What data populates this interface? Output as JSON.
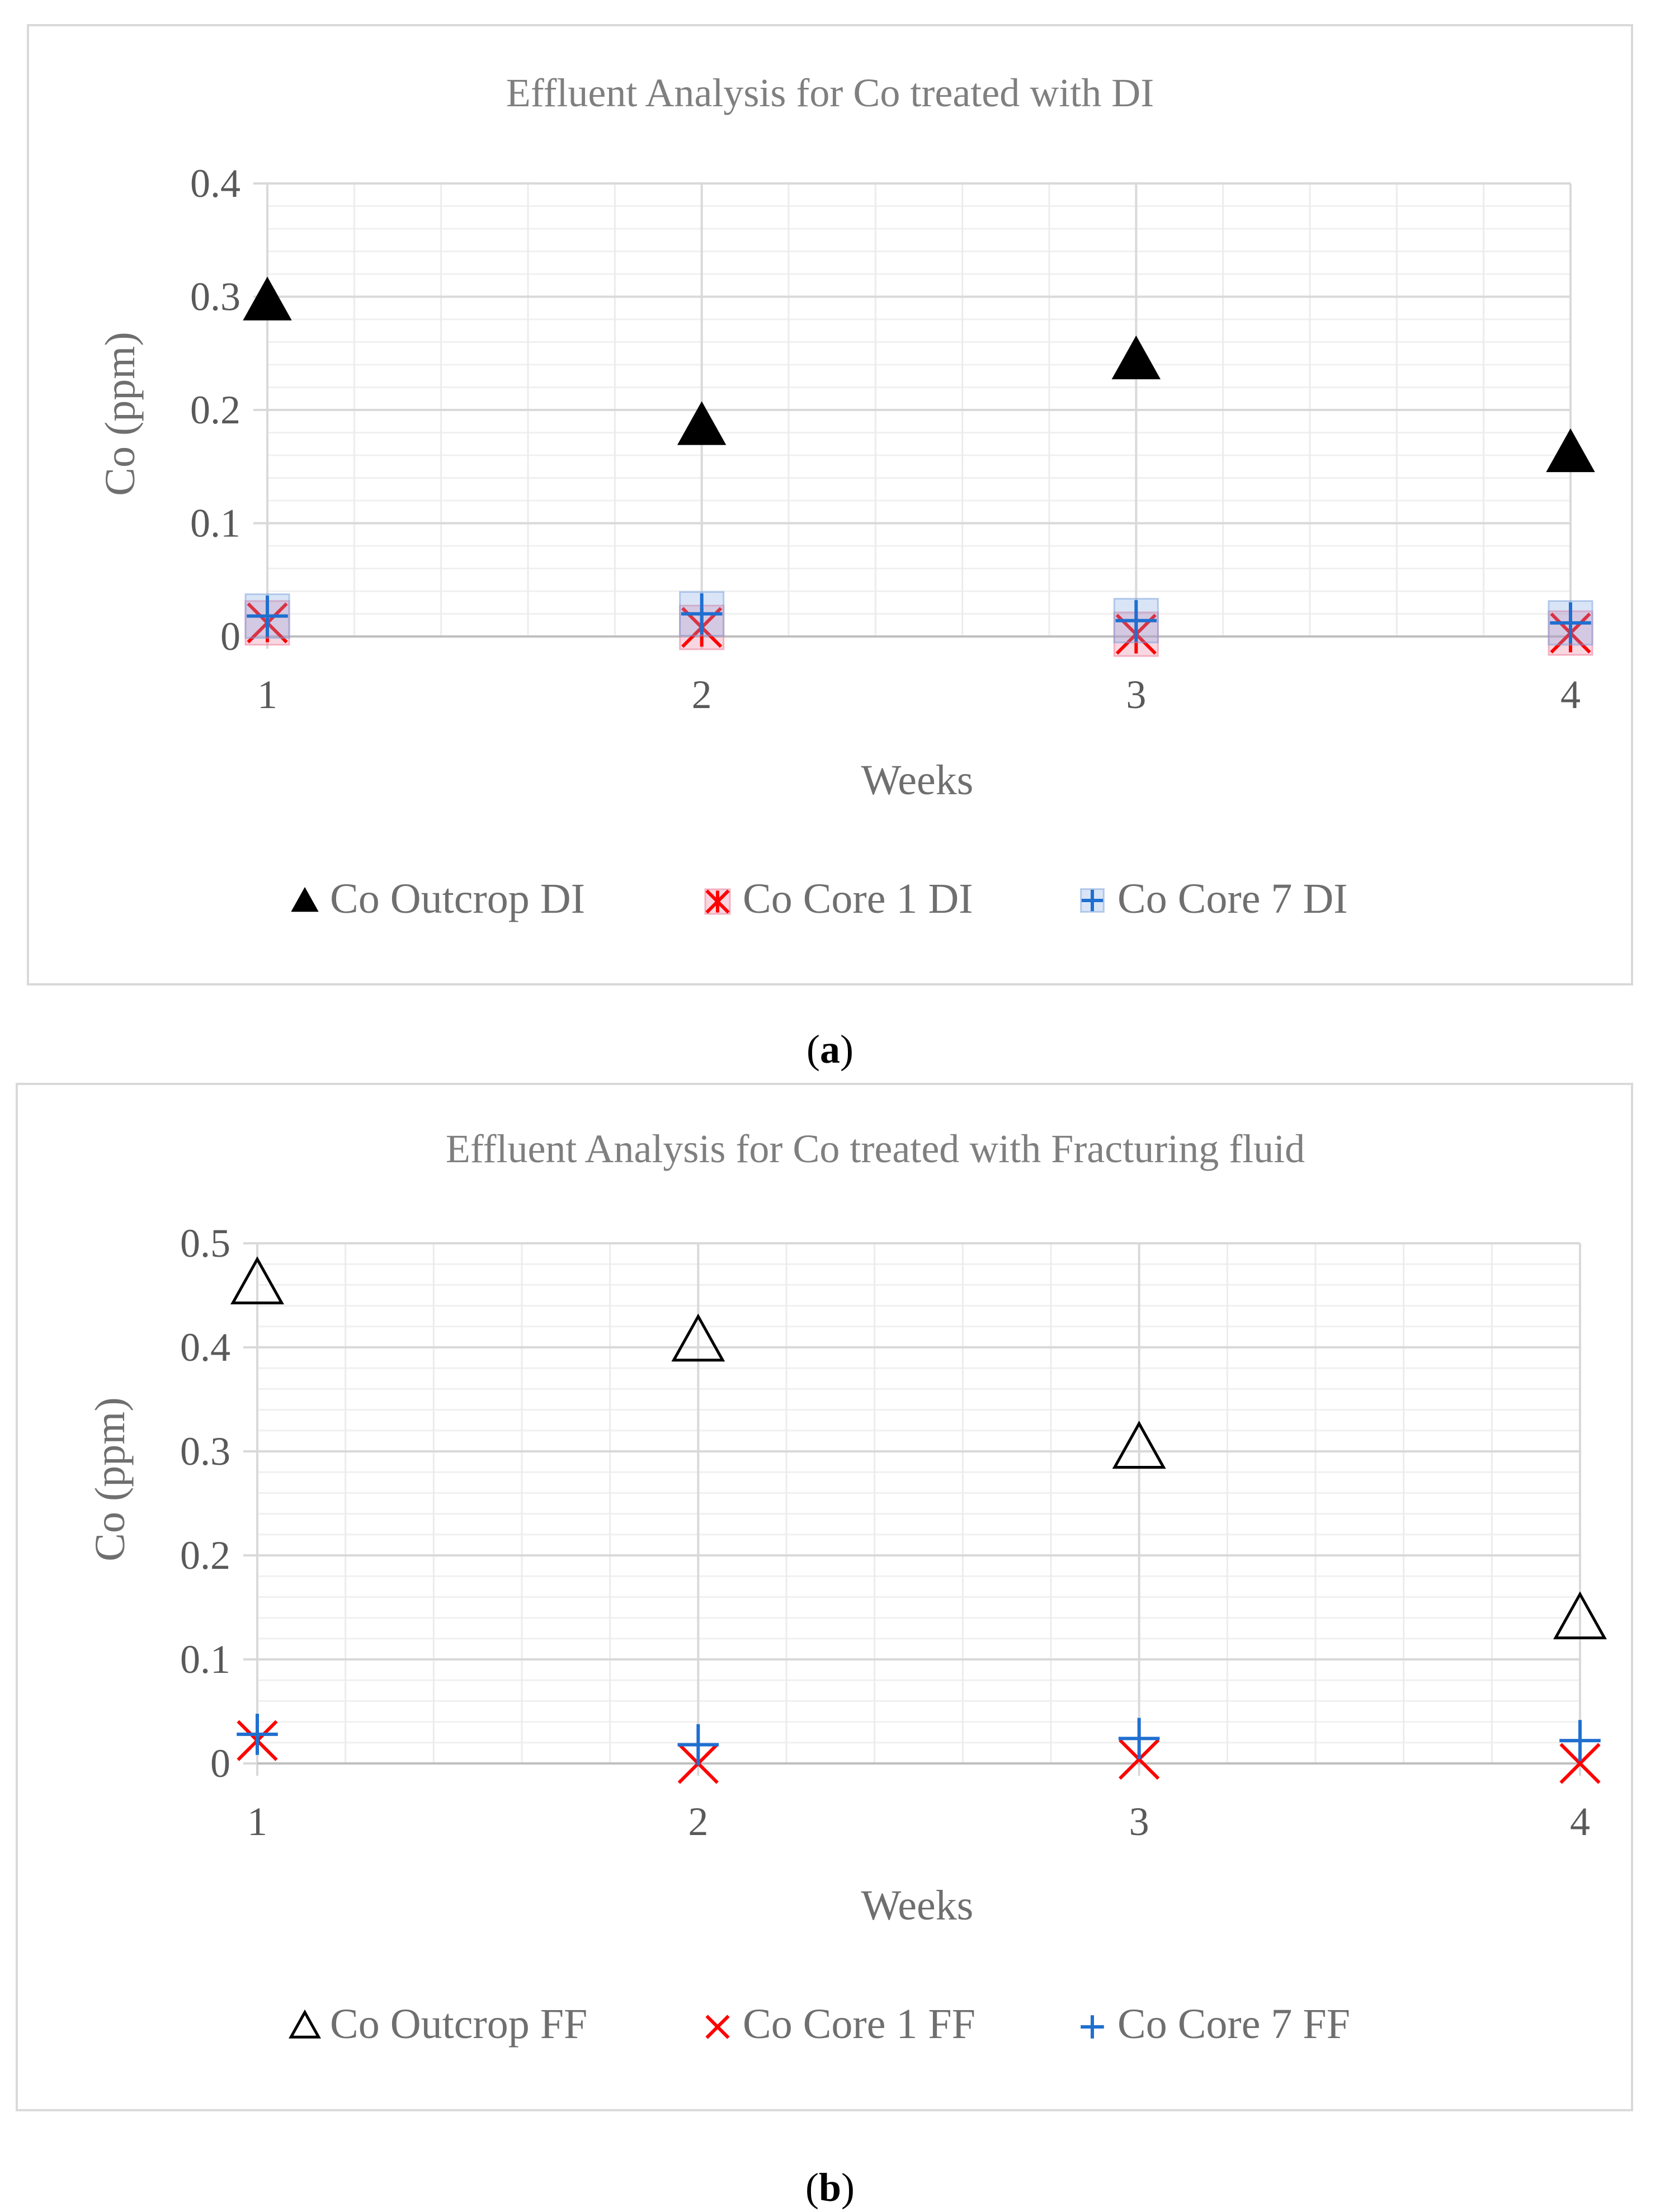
{
  "chart_data": [
    {
      "type": "scatter",
      "panel": "a",
      "caption": "a",
      "title": "Effluent Analysis for Co treated with DI",
      "xlabel": "Weeks",
      "ylabel": "Co (ppm)",
      "x": [
        1,
        2,
        3,
        4
      ],
      "xlim": [
        1,
        4
      ],
      "ylim": [
        0,
        0.4
      ],
      "yticks": [
        "0",
        "0.1",
        "0.2",
        "0.3",
        "0.4"
      ],
      "xticks": [
        "1",
        "2",
        "3",
        "4"
      ],
      "grid": true,
      "legend_position": "bottom",
      "series": [
        {
          "name": "Co Outcrop DI",
          "marker": "filled-triangle",
          "color": "#000000",
          "values": [
            0.295,
            0.185,
            0.243,
            0.161
          ]
        },
        {
          "name": "Co Core 1 DI",
          "marker": "x-star",
          "color": "#ff0000",
          "values": [
            0.012,
            0.008,
            0.002,
            0.003
          ]
        },
        {
          "name": "Co Core 7 DI",
          "marker": "plus",
          "color": "#1f6fd0",
          "values": [
            0.018,
            0.02,
            0.014,
            0.012
          ]
        }
      ]
    },
    {
      "type": "scatter",
      "panel": "b",
      "caption": "b",
      "title": "Effluent Analysis for Co treated with Fracturing fluid",
      "xlabel": "Weeks",
      "ylabel": "Co (ppm)",
      "x": [
        1,
        2,
        3,
        4
      ],
      "xlim": [
        1,
        4
      ],
      "ylim": [
        0,
        0.5
      ],
      "yticks": [
        "0",
        "0.1",
        "0.2",
        "0.3",
        "0.4",
        "0.5"
      ],
      "xticks": [
        "1",
        "2",
        "3",
        "4"
      ],
      "grid": true,
      "legend_position": "bottom",
      "series": [
        {
          "name": "Co Outcrop FF",
          "marker": "open-triangle",
          "color": "#000000",
          "values": [
            0.46,
            0.405,
            0.302,
            0.138
          ]
        },
        {
          "name": "Co Core 1 FF",
          "marker": "x",
          "color": "#ff0000",
          "values": [
            0.022,
            0.0,
            0.004,
            0.0
          ]
        },
        {
          "name": "Co Core 7 FF",
          "marker": "plus",
          "color": "#1f6fd0",
          "values": [
            0.028,
            0.018,
            0.024,
            0.022
          ]
        }
      ]
    }
  ]
}
